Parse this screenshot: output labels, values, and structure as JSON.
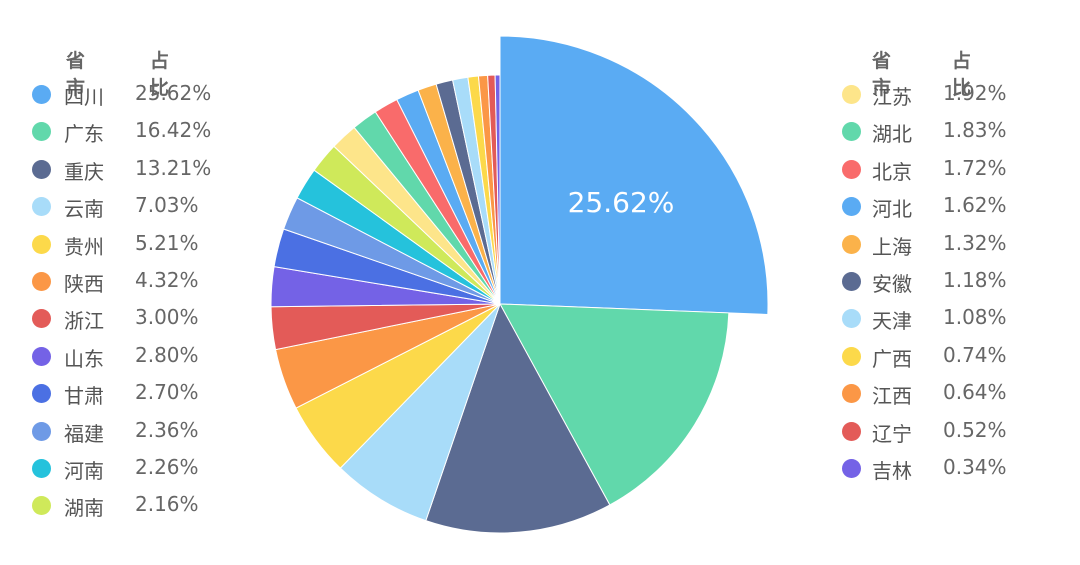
{
  "chart_data": {
    "type": "pie",
    "legend_header": {
      "name": "省市",
      "value": "占比"
    },
    "highlight_label": "25.62%",
    "slices": [
      {
        "name": "四川",
        "label": "25.62%",
        "value": 25.62,
        "color": "#5aabf3",
        "exploded": true
      },
      {
        "name": "广东",
        "label": "16.42%",
        "value": 16.42,
        "color": "#61d8ab"
      },
      {
        "name": "重庆",
        "label": "13.21%",
        "value": 13.21,
        "color": "#5b6b92"
      },
      {
        "name": "云南",
        "label": "7.03%",
        "value": 7.03,
        "color": "#a8dcf9"
      },
      {
        "name": "贵州",
        "label": "5.21%",
        "value": 5.21,
        "color": "#fcd94a"
      },
      {
        "name": "陕西",
        "label": "4.32%",
        "value": 4.32,
        "color": "#fb9746"
      },
      {
        "name": "浙江",
        "label": "3.00%",
        "value": 3.0,
        "color": "#e35b58"
      },
      {
        "name": "山东",
        "label": "2.80%",
        "value": 2.8,
        "color": "#7462e6"
      },
      {
        "name": "甘肃",
        "label": "2.70%",
        "value": 2.7,
        "color": "#4b70e3"
      },
      {
        "name": "福建",
        "label": "2.36%",
        "value": 2.36,
        "color": "#6e9ae6"
      },
      {
        "name": "河南",
        "label": "2.26%",
        "value": 2.26,
        "color": "#25c2dc"
      },
      {
        "name": "湖南",
        "label": "2.16%",
        "value": 2.16,
        "color": "#cfe95a"
      },
      {
        "name": "江苏",
        "label": "1.92%",
        "value": 1.92,
        "color": "#fde58a"
      },
      {
        "name": "湖北",
        "label": "1.83%",
        "value": 1.83,
        "color": "#61d8ab"
      },
      {
        "name": "北京",
        "label": "1.72%",
        "value": 1.72,
        "color": "#f96b6b"
      },
      {
        "name": "河北",
        "label": "1.62%",
        "value": 1.62,
        "color": "#5aabf3"
      },
      {
        "name": "上海",
        "label": "1.32%",
        "value": 1.32,
        "color": "#fbb24a"
      },
      {
        "name": "安徽",
        "label": "1.18%",
        "value": 1.18,
        "color": "#5b6b92"
      },
      {
        "name": "天津",
        "label": "1.08%",
        "value": 1.08,
        "color": "#a8dcf9"
      },
      {
        "name": "广西",
        "label": "0.74%",
        "value": 0.74,
        "color": "#fcd94a"
      },
      {
        "name": "江西",
        "label": "0.64%",
        "value": 0.64,
        "color": "#fb9746"
      },
      {
        "name": "辽宁",
        "label": "0.52%",
        "value": 0.52,
        "color": "#e35b58"
      },
      {
        "name": "吉林",
        "label": "0.34%",
        "value": 0.34,
        "color": "#7462e6"
      }
    ]
  }
}
